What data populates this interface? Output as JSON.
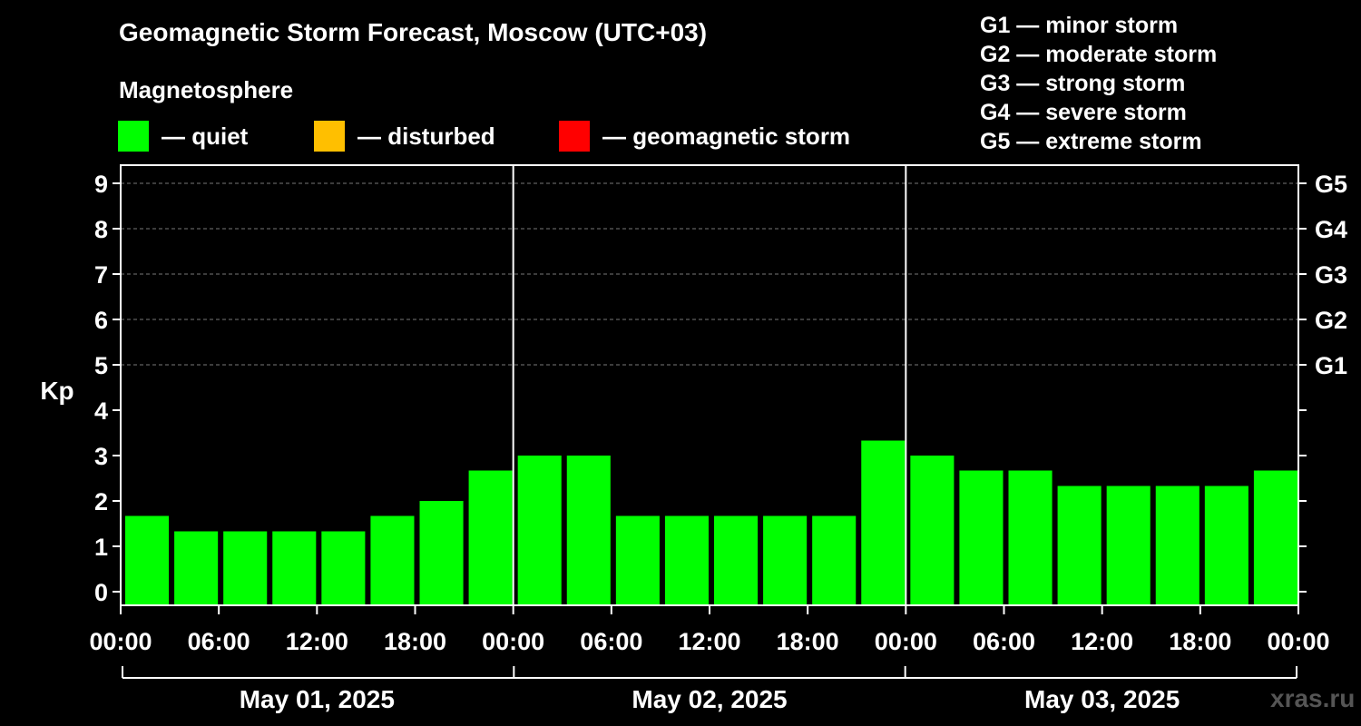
{
  "title": "Geomagnetic Storm Forecast, Moscow (UTC+03)",
  "subtitle": "Magnetosphere",
  "legend": [
    {
      "label": "— quiet",
      "color": "#00ff00"
    },
    {
      "label": "— disturbed",
      "color": "#ffbf00"
    },
    {
      "label": "— geomagnetic storm",
      "color": "#ff0000"
    }
  ],
  "storm_levels": [
    "G1 — minor storm",
    "G2 — moderate storm",
    "G3 — strong storm",
    "G4 — severe storm",
    "G5 — extreme storm"
  ],
  "watermark": "xras.ru",
  "chart_data": {
    "type": "bar",
    "ylabel": "Kp",
    "ylim": [
      0,
      9
    ],
    "yticks": [
      0,
      1,
      2,
      3,
      4,
      5,
      6,
      7,
      8,
      9
    ],
    "right_axis_labels": [
      {
        "kp": 5,
        "label": "G1"
      },
      {
        "kp": 6,
        "label": "G2"
      },
      {
        "kp": 7,
        "label": "G3"
      },
      {
        "kp": 8,
        "label": "G4"
      },
      {
        "kp": 9,
        "label": "G5"
      }
    ],
    "x_tick_labels": [
      "00:00",
      "06:00",
      "12:00",
      "18:00",
      "00:00",
      "06:00",
      "12:00",
      "18:00",
      "00:00",
      "06:00",
      "12:00",
      "18:00",
      "00:00"
    ],
    "days": [
      "May 01, 2025",
      "May 02, 2025",
      "May 03, 2025"
    ],
    "interval_hours": 3,
    "values": [
      1.67,
      1.33,
      1.33,
      1.33,
      1.33,
      1.67,
      2.0,
      2.67,
      3.0,
      3.0,
      1.67,
      1.67,
      1.67,
      1.67,
      1.67,
      3.33,
      3.0,
      2.67,
      2.67,
      2.33,
      2.33,
      2.33,
      2.33,
      2.67
    ],
    "bar_color": "#00ff00",
    "grid": true
  }
}
